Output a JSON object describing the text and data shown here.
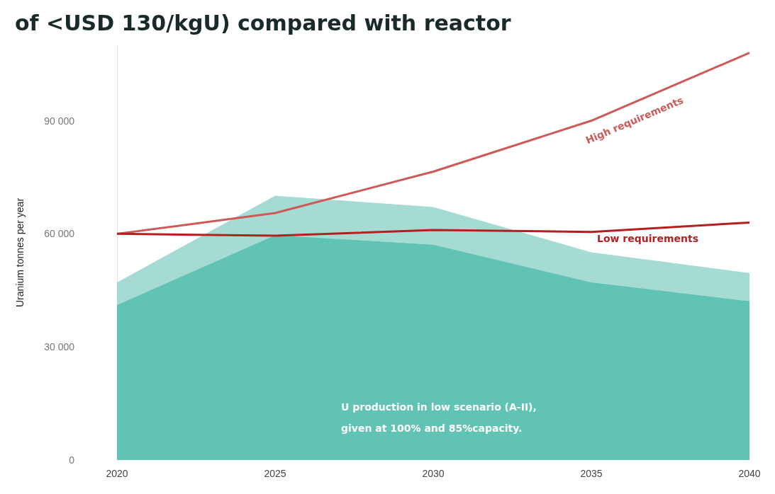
{
  "chart_data": {
    "type": "area",
    "title": "of <USD 130/kgU) compared with reactor",
    "ylabel": "Uranium tonnes per year",
    "categories": [
      "2020",
      "2025",
      "2030",
      "2035",
      "2040"
    ],
    "series": [
      {
        "color": "#a5dbd3",
        "values": [
          47000,
          70000,
          67000,
          55000,
          49500
        ]
      },
      {
        "color": "#60c3b3",
        "values": [
          41000,
          59500,
          57000,
          47000,
          42000
        ]
      },
      {
        "type": "line",
        "name": "High requirements",
        "color": "#cd5a56",
        "values": [
          60000,
          65500,
          76500,
          90000,
          108000
        ]
      },
      {
        "type": "line",
        "name": "Low requirements",
        "color": "#b51f1f",
        "values": [
          60000,
          59500,
          61000,
          60500,
          63000
        ]
      }
    ],
    "ylim": [
      0,
      110000
    ],
    "yticks": [
      0,
      {
        "value": 30000,
        "label": "30 000"
      },
      {
        "value": 60000,
        "label": "60 000"
      },
      {
        "value": 90000,
        "label": "90 000"
      }
    ],
    "annotations": [
      "U production in low scenario (A-II),\ngiven at 100% and 85%capacity."
    ],
    "grid": false,
    "legend": false,
    "marker": "none",
    "line_style": "solid"
  }
}
